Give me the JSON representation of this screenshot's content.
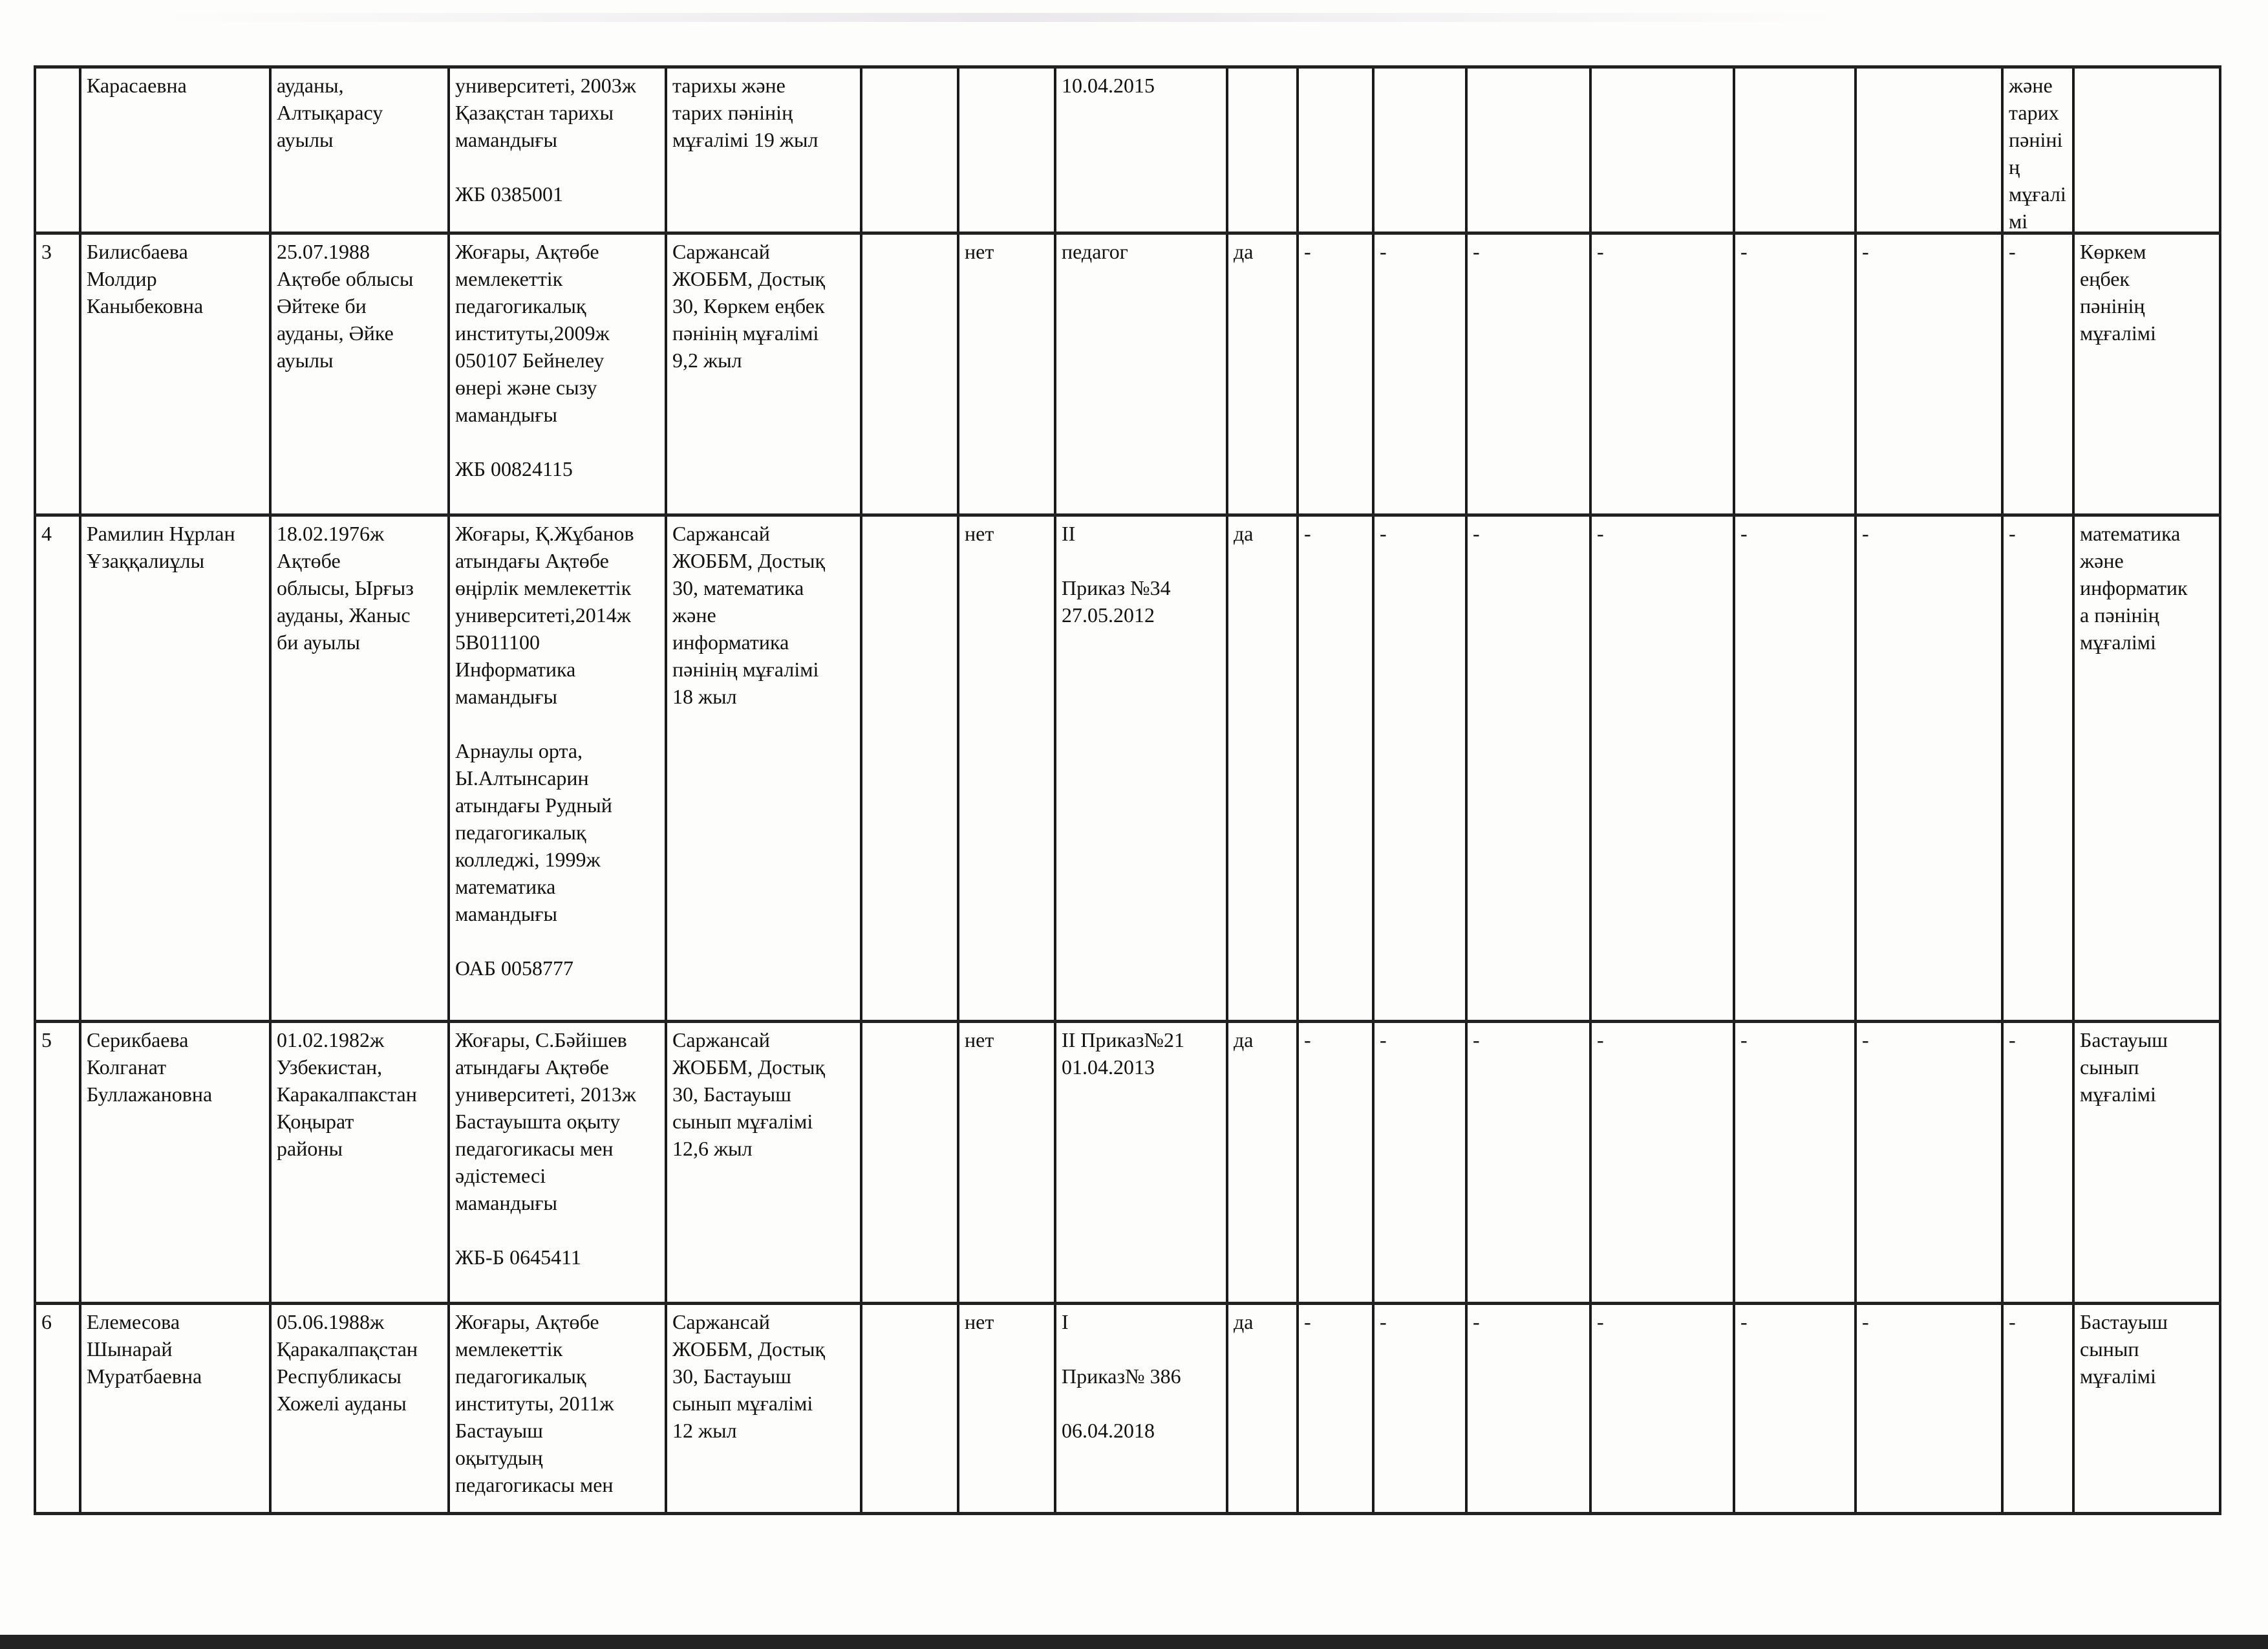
{
  "table": {
    "rows": [
      {
        "cells": [
          "",
          "Карасаевна",
          "ауданы,\nАлтықарасу\nауылы",
          "университеті, 2003ж\nҚазақстан тарихы\nмамандығы\n\nЖБ 0385001",
          "тарихы және\nтарих пәнінің\nмұғалімі 19 жыл",
          "",
          "",
          "10.04.2015",
          "",
          "",
          "",
          "",
          "",
          "",
          "",
          "және тарих\nпәнінің\nмұғалімі"
        ]
      },
      {
        "cells": [
          "3",
          "Билисбаева\nМолдир\nКаныбековна",
          "25.07.1988\nАқтөбе облысы\nӘйтеке би\nауданы, Әйке\nауылы",
          "Жоғары, Ақтөбе\nмемлекеттік\nпедагогикалық\nинституты,2009ж\n050107 Бейнелеу\nөнері және сызу\nмамандығы\n\nЖБ 00824115",
          "Саржансай\nЖОББМ, Достық\n30, Көркем еңбек\nпәнінің мұғалімі\n9,2 жыл",
          "",
          "нет",
          "педагог",
          "да",
          "-",
          "-",
          "-",
          "-",
          "-",
          "-",
          "-",
          "Көркем\nеңбек\nпәнінің\nмұғалімі"
        ]
      },
      {
        "cells": [
          "4",
          "Рамилин Нұрлан\nҰзаққалиұлы",
          "18.02.1976ж\nАқтөбе\nоблысы, Ырғыз\nауданы, Жаныс\nби ауылы",
          "Жоғары, Қ.Жұбанов\nатындағы Ақтөбе\nөңірлік мемлекеттік\nуниверситеті,2014ж\n5В011100\nИнформатика\nмамандығы\n\nАрнаулы орта,\nЫ.Алтынсарин\nатындағы Рудный\nпедагогикалық\nколледжі, 1999ж\nматематика\nмамандығы\n\nОАБ 0058777",
          "Саржансай\nЖОББМ, Достық\n30, математика\nжәне\nинформатика\nпәнінің мұғалімі\n18 жыл",
          "",
          "нет",
          "II\n\nПриказ №34\n27.05.2012",
          "да",
          "-",
          "-",
          "-",
          "-",
          "-",
          "-",
          "-",
          "математика\nжәне\nинформатик\nа пәнінің\nмұғалімі"
        ]
      },
      {
        "cells": [
          "5",
          "Серикбаева\nКолганат\nБуллажановна",
          "01.02.1982ж\nУзбекистан,\nКаракалпакстан\nҚоңырат\nрайоны",
          "Жоғары, С.Бәйішев\nатындағы Ақтөбе\nуниверситеті, 2013ж\nБастауышта оқыту\nпедагогикасы мен\nәдістемесі\nмамандығы\n\nЖБ-Б 0645411",
          "Саржансай\nЖОББМ, Достық\n30, Бастауыш\nсынып мұғалімі\n12,6 жыл",
          "",
          "нет",
          "II Приказ№21\n01.04.2013",
          "да",
          "-",
          "-",
          "-",
          "-",
          "-",
          "-",
          "-",
          "Бастауыш\nсынып\nмұғалімі"
        ]
      },
      {
        "cells": [
          "6",
          "Елемесова\nШынарай\nМуратбаевна",
          "05.06.1988ж\nҚаракалпақстан\nРеспубликасы\nХожелі ауданы",
          "Жоғары, Ақтөбе\nмемлекеттік\nпедагогикалық\nинституты, 2011ж\nБастауыш\nоқытудың\nпедагогикасы мен",
          "Саржансай\nЖОББМ, Достық\n30, Бастауыш\nсынып мұғалімі\n12 жыл",
          "",
          "нет",
          "I\n\nПриказ№ 386\n\n06.04.2018",
          "да",
          "-",
          "-",
          "-",
          "-",
          "-",
          "-",
          "-",
          "Бастауыш\nсынып\nмұғалімі"
        ]
      }
    ]
  }
}
